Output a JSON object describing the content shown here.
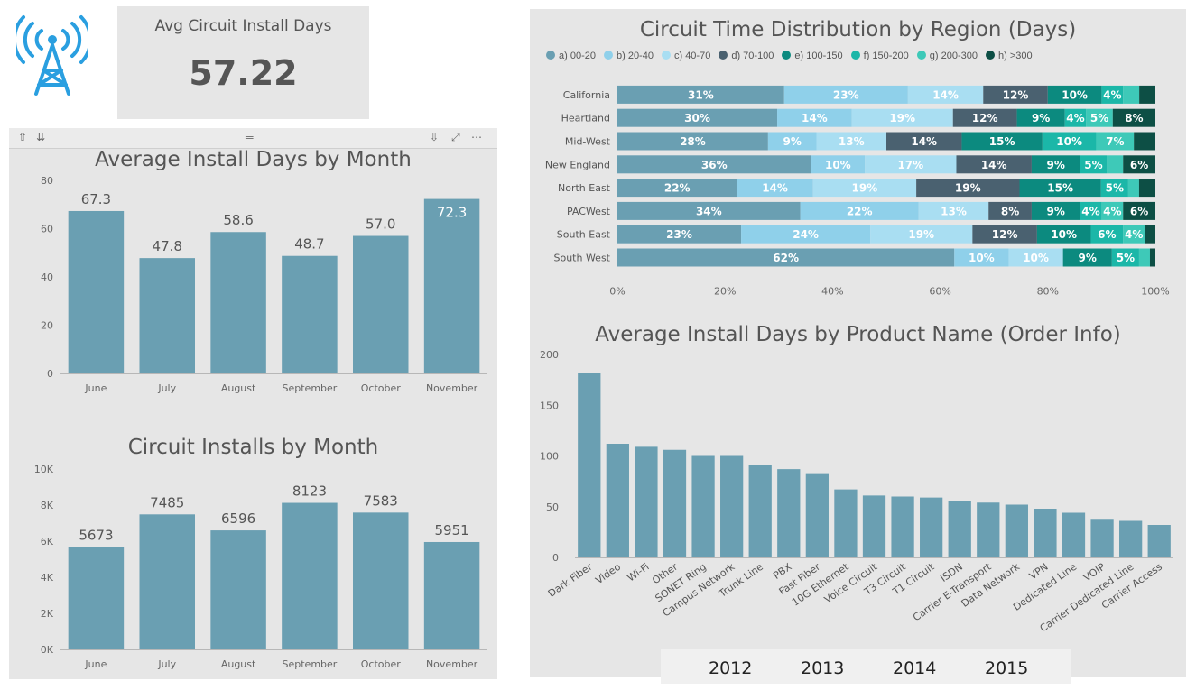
{
  "colors": {
    "bar": "#6a9fb2",
    "text": "#555555",
    "axis": "#666666"
  },
  "logo": {
    "icon": "cell-tower-icon"
  },
  "kpi": {
    "label": "Avg Circuit Install Days",
    "value": "57.22"
  },
  "toolbar": {
    "icons": [
      "pin-up-icon",
      "drill-down-icon",
      "drag-handle-icon",
      "download-icon",
      "focus-mode-icon",
      "more-options-icon"
    ]
  },
  "chart_data": [
    {
      "id": "avg_install_days_month",
      "type": "bar",
      "title": "Average Install Days by Month",
      "categories": [
        "June",
        "July",
        "August",
        "September",
        "October",
        "November"
      ],
      "values": [
        67.3,
        47.8,
        58.6,
        48.7,
        57.0,
        72.3
      ],
      "value_labels": [
        "67.3",
        "47.8",
        "58.6",
        "48.7",
        "57.0",
        "72.3"
      ],
      "ylim": [
        0,
        80
      ],
      "yticks": [
        0,
        20,
        40,
        60,
        80
      ],
      "ytick_labels": [
        "0",
        "20",
        "40",
        "60",
        "80"
      ]
    },
    {
      "id": "circuit_installs_month",
      "type": "bar",
      "title": "Circuit Installs by Month",
      "categories": [
        "June",
        "July",
        "August",
        "September",
        "October",
        "November"
      ],
      "values": [
        5673,
        7485,
        6596,
        8123,
        7583,
        5951
      ],
      "value_labels": [
        "5673",
        "7485",
        "6596",
        "8123",
        "7583",
        "5951"
      ],
      "ylim": [
        0,
        10000
      ],
      "yticks": [
        0,
        2000,
        4000,
        6000,
        8000,
        10000
      ],
      "ytick_labels": [
        "0K",
        "2K",
        "4K",
        "6K",
        "8K",
        "10K"
      ]
    },
    {
      "id": "circuit_time_region",
      "type": "bar",
      "stacked": "100%",
      "orientation": "horizontal",
      "title": "Circuit Time Distribution by Region (Days)",
      "legend_position": "top-left",
      "categories": [
        "California",
        "Heartland",
        "Mid-West",
        "New England",
        "North East",
        "PACWest",
        "South East",
        "South West"
      ],
      "series": [
        {
          "name": "a) 00-20",
          "color": "#6a9fb2",
          "values": [
            31,
            30,
            28,
            36,
            22,
            34,
            23,
            62
          ]
        },
        {
          "name": "b) 20-40",
          "color": "#8fd0ea",
          "values": [
            23,
            14,
            9,
            10,
            14,
            22,
            24,
            10
          ]
        },
        {
          "name": "c) 40-70",
          "color": "#a9def2",
          "values": [
            14,
            19,
            13,
            17,
            19,
            13,
            19,
            10
          ]
        },
        {
          "name": "d) 70-100",
          "color": "#4a6170",
          "values": [
            12,
            12,
            14,
            14,
            19,
            8,
            12,
            0
          ]
        },
        {
          "name": "e) 100-150",
          "color": "#0c8a7f",
          "values": [
            10,
            9,
            15,
            9,
            15,
            9,
            10,
            9
          ]
        },
        {
          "name": "f) 150-200",
          "color": "#1bb7a8",
          "values": [
            4,
            4,
            10,
            5,
            5,
            4,
            6,
            5
          ]
        },
        {
          "name": "g) 200-300",
          "color": "#3ec9b8",
          "values": [
            3,
            5,
            7,
            3,
            2,
            4,
            4,
            2
          ]
        },
        {
          "name": "h) >300",
          "color": "#0d4f45",
          "values": [
            3,
            8,
            4,
            6,
            3,
            6,
            2,
            1
          ]
        }
      ],
      "segment_labels": [
        [
          "31%",
          "23%",
          "14%",
          "12%",
          "10%",
          "4%",
          "",
          ""
        ],
        [
          "30%",
          "14%",
          "19%",
          "12%",
          "9%",
          "4%",
          "5%",
          "8%"
        ],
        [
          "28%",
          "9%",
          "13%",
          "14%",
          "15%",
          "10%",
          "7%",
          ""
        ],
        [
          "36%",
          "10%",
          "17%",
          "14%",
          "9%",
          "5%",
          "",
          "6%"
        ],
        [
          "22%",
          "14%",
          "19%",
          "19%",
          "15%",
          "5%",
          "",
          ""
        ],
        [
          "34%",
          "22%",
          "13%",
          "8%",
          "9%",
          "4%",
          "4%",
          "6%"
        ],
        [
          "23%",
          "24%",
          "19%",
          "12%",
          "10%",
          "6%",
          "4%",
          ""
        ],
        [
          "62%",
          "10%",
          "10%",
          "",
          "9%",
          "5%",
          "",
          ""
        ]
      ],
      "xticks": [
        0,
        20,
        40,
        60,
        80,
        100
      ],
      "xtick_labels": [
        "0%",
        "20%",
        "40%",
        "60%",
        "80%",
        "100%"
      ]
    },
    {
      "id": "avg_install_days_product",
      "type": "bar",
      "title": "Average Install Days by Product Name (Order Info)",
      "categories": [
        "Dark Fiber",
        "Video",
        "Wi-Fi",
        "Other",
        "SONET Ring",
        "Campus Network",
        "Trunk Line",
        "PBX",
        "Fast Fiber",
        "10G Ethernet",
        "Voice Circuit",
        "T3 Circuit",
        "T1 Circuit",
        "ISDN",
        "Carrier E-Transport",
        "Data Network",
        "VPN",
        "Dedicated Line",
        "VOIP",
        "Carrier Dedicated Line",
        "Carrier Access"
      ],
      "values": [
        182,
        112,
        109,
        106,
        100,
        100,
        91,
        87,
        83,
        67,
        61,
        60,
        59,
        56,
        54,
        52,
        48,
        44,
        38,
        36,
        32
      ],
      "ylim": [
        0,
        200
      ],
      "yticks": [
        0,
        50,
        100,
        150,
        200
      ],
      "ytick_labels": [
        "0",
        "50",
        "100",
        "150",
        "200"
      ]
    }
  ],
  "slicer": {
    "years": [
      "2012",
      "2013",
      "2014",
      "2015"
    ]
  }
}
